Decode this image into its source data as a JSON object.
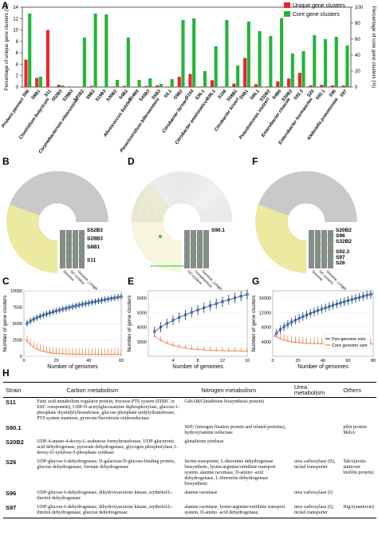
{
  "panels": {
    "A": "A",
    "B": "B",
    "C": "C",
    "D": "D",
    "E": "E",
    "F": "F",
    "G": "G",
    "H": "H"
  },
  "colors": {
    "unique": "#e8262a",
    "core": "#25b43a",
    "ring": "#ece9a0",
    "gray": "#c9c9c9",
    "pan": "#1f4e8c",
    "coreline": "#e87a3c"
  },
  "chart_data": [
    {
      "type": "bar",
      "legend": [
        "Unique gene clusters",
        "Core gene clusters"
      ],
      "ylabel_left": "Percentage of unique gene clusters (%)",
      "ylabel_right": "Percentage of core gene clusters (%)",
      "ylim_left": [
        0,
        14
      ],
      "ylim_right": [
        0,
        100
      ],
      "yticks_left": [
        "0",
        "2",
        "4",
        "6",
        "8",
        "10",
        "12",
        "14"
      ],
      "yticks_right": [
        "0",
        "20",
        "40",
        "60",
        "80",
        "100"
      ],
      "categories": [
        "S96",
        "S8B1",
        "S11",
        "S52B3",
        "S28B3",
        "S41B2",
        "S8B2",
        "S19B3",
        "S30B2",
        "S4B2",
        "S14B9",
        "S43B3",
        "S5B3",
        "S9.1",
        "S9B2",
        "S104",
        "S36.1",
        "S90.1",
        "S106",
        "S58B1",
        "S5B1",
        "S66.1",
        "S32B2",
        "S4B6",
        "S20B2",
        "S92.3",
        "S26",
        "S92.1",
        "S96",
        "S97"
      ],
      "unique_values": [
        4.8,
        1.6,
        10.0,
        0.4,
        0.1,
        0,
        0.2,
        0,
        0.1,
        0.2,
        0,
        0.2,
        0.3,
        0.1,
        1.8,
        2.3,
        0.1,
        1.2,
        0.1,
        0.6,
        5.1,
        0.5,
        0.1,
        1.0,
        1.5,
        2.5,
        0.3,
        0.4,
        0.3,
        0.3
      ],
      "core_values": [
        92,
        13,
        0,
        2,
        0,
        62,
        92,
        91,
        9,
        62,
        9,
        11,
        4,
        10,
        84,
        86,
        20,
        51,
        84,
        27,
        82,
        70,
        64,
        86,
        42,
        45,
        65,
        60,
        63,
        52
      ],
      "species": [
        "Proteus penneri",
        "Clostridium butyricum",
        "Corynebacterium vitaeruminis",
        "Alloiococcus butzleri",
        "Paraclostridium bifermentans",
        "Citrobacter farmeri",
        "Citrobacter amalonaticus",
        "Citrobacter koseri",
        "Pseudomonas stutzeri",
        "Enterobacter cloacae",
        "Enterobacter hormaechei",
        "Klebsiella pneumoniae"
      ]
    },
    {
      "type": "scatter",
      "title": "C",
      "xlabel": "Number of genomes",
      "ylabel": "Number of gene clusters",
      "xlim": [
        0,
        60
      ],
      "ylim": [
        0,
        10000
      ],
      "xticks": [
        "0",
        "20",
        "40",
        "60"
      ],
      "yticks": [
        "0",
        "2500",
        "5000",
        "7500",
        "10000"
      ]
    },
    {
      "type": "scatter",
      "title": "E",
      "xlabel": "Number of genomes",
      "ylabel": "Number of gene clusters",
      "xlim": [
        0,
        16
      ],
      "ylim": [
        2000,
        6500
      ],
      "xticks": [
        "4",
        "8",
        "12",
        "16"
      ],
      "yticks": [
        "3000",
        "4000",
        "5000",
        "6000"
      ]
    },
    {
      "type": "scatter",
      "title": "G",
      "xlabel": "Number of genomes",
      "ylabel": "Number of gene clusters",
      "xlim": [
        0,
        80
      ],
      "ylim": [
        0,
        18000
      ],
      "xticks": [
        "0",
        "20",
        "40",
        "60",
        "80"
      ],
      "yticks": [
        "4000",
        "8000",
        "12000",
        "16000"
      ],
      "legend": [
        "Pan genome size",
        "Core genome size"
      ]
    }
  ],
  "rings": {
    "B": {
      "labels": [
        "S52B3",
        "S28B3",
        "S8B1",
        "S11"
      ],
      "axis": [
        "Genome",
        "GC-content",
        "Genome_Length"
      ]
    },
    "D": {
      "labels": [
        "S90.1"
      ],
      "axis": [
        "GC-content",
        "Completeness",
        "Genome_Length"
      ]
    },
    "F": {
      "labels": [
        "S20B2",
        "S96",
        "S32B2",
        "S92.3",
        "S97",
        "S26"
      ],
      "axis": [
        "Genome",
        "GC-content",
        "Genome_Length"
      ]
    }
  },
  "table": {
    "headers": [
      "Strain",
      "Carbon metabolism",
      "Nitrogen metabolism",
      "Urea metabolism",
      "Others"
    ],
    "rows": [
      {
        "strain": "S11",
        "carbon": "Fatty acid metabolism regulator protein, fructose PTS system (EIIBC or EIIC component), UDP-N-acetylglucosamine diphosphorylase, glucose-1-phosphate thymidylyltransferase, glucose phosphate uridylyltransferase, PTS system mannose, pyruvate/flavodoxin oxidoreductase",
        "nitrogen": "GshAB(Glutathione biosynthesis protein)",
        "urea": "",
        "others": ""
      },
      {
        "strain": "S90.1",
        "carbon": "",
        "nitrogen": "NifU (nitrogen fixation protein and related proteins), hydroxylamine reductase",
        "urea": "",
        "others": "pilin protein MshA"
      },
      {
        "strain": "S20B2",
        "carbon": "UDP-4-amino-4-deoxy-L-arabinose formyltransferase, UDP-glucuronic acid dehydrogenase, pyruvate dehydrogenase, glycogen phosphorylase,1-deoxy-D-xylulose-5-phosphate synthase",
        "nitrogen": "glutathione synthase",
        "urea": "",
        "others": ""
      },
      {
        "strain": "S26",
        "carbon": "UDP-glucose 6-dehydrogenase, D-galactose/D-glucose-binding protein, glucose dehydrogenase, formate dehydrogenase",
        "nitrogen": "Serine transporter, L-threonine dehydrogenase biosynthetic, lysine/arginine/ornithine transport system, alanine racemase, D-amino -acid dehydrogenase, L-threonine dehydrogenase biosynthetic",
        "urea": "urea carboxylase (II), nickel transporter",
        "others": "TabA(toxin-antitoxin biofilm protein)"
      },
      {
        "strain": "S96",
        "carbon": "UDP-glucose 6-dehydrogenase, dihydroxyacetone kinase, erythritol/L-threitol dehydrogenase",
        "nitrogen": "alanine racemase",
        "urea": "urea carboxylase (I)",
        "others": ""
      },
      {
        "strain": "S97",
        "carbon": "UDP-glucose 6-dehydrogenase, dihydroxyacetone kinase, erythritol/L-threitol dehydrogenase, glucose dehydrogenase",
        "nitrogen": "alanine racemase, lysine/arginine/ornithine transport system, D-amino -acid dehydrogenase,",
        "urea": "urea carboxylase (I), nickel transporter",
        "others": "HigA(antitoxin)"
      }
    ]
  }
}
